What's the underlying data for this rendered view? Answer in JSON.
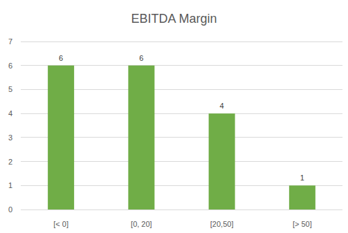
{
  "chart_data": {
    "type": "bar",
    "title": "EBITDA Margin",
    "categories": [
      "[< 0]",
      "[0, 20]",
      "[20,50]",
      "[> 50]"
    ],
    "values": [
      6,
      6,
      4,
      1
    ],
    "color": "#70ad47",
    "ylim": [
      0,
      7
    ],
    "yticks": [
      0,
      1,
      2,
      3,
      4,
      5,
      6,
      7
    ],
    "grid": true,
    "data_labels": true
  }
}
